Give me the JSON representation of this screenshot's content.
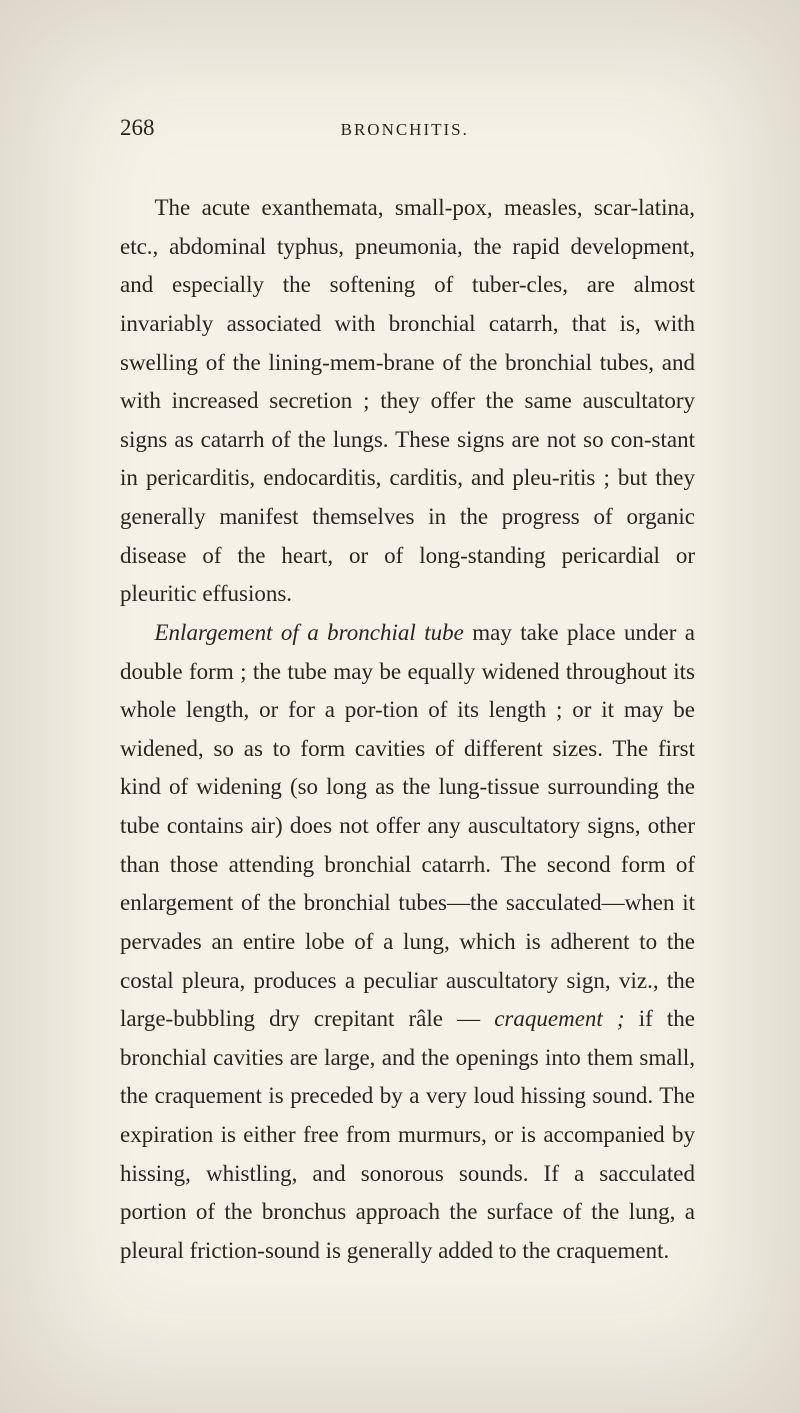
{
  "page": {
    "number": "268",
    "running_head": "BRONCHITIS.",
    "background_color": "#f5f1e6",
    "text_color": "#2a2620",
    "body_fontsize": 23,
    "line_height": 1.68,
    "header_fontsize_pageno": 23,
    "header_fontsize_head": 17
  },
  "paragraphs": {
    "p1_part1": "The acute exanthemata, small-pox, measles, scar-latina, etc., abdominal typhus, pneumonia, the rapid development, and especially the softening of tuber-cles, are almost invariably associated with bronchial catarrh, that is, with swelling of the lining-mem-brane of the bronchial tubes, and with increased secretion ; they offer the same auscultatory signs as catarrh of the lungs. These signs are not so con-stant in pericarditis, endocarditis, carditis, and pleu-ritis ; but they generally manifest themselves in the progress of organic disease of the heart, or of long-standing pericardial or pleuritic effusions.",
    "p2_italic1": "Enlargement of a bronchial tube",
    "p2_part1": " may take place under a double form ; the tube may be equally widened throughout its whole length, or for a por-tion of its length ; or it may be widened, so as to form cavities of different sizes. The first kind of widening (so long as the lung-tissue surrounding the tube contains air) does not offer any auscultatory signs, other than those attending bronchial catarrh. The second form of enlargement of the bronchial tubes—the sacculated—when it pervades an entire lobe of a lung, which is adherent to the costal pleura, produces a peculiar auscultatory sign, viz., the large-bubbling dry crepitant râle — ",
    "p2_italic2": "craquement ;",
    "p2_part2": " if the bronchial cavities are large, and the openings into them small, the craquement is preceded by a very loud hissing sound. The expiration is either free from murmurs, or is accompanied by hissing, whistling, and sonorous sounds. If a sacculated portion of the bronchus approach the surface of the lung, a pleural friction-sound is generally added to the craquement."
  }
}
